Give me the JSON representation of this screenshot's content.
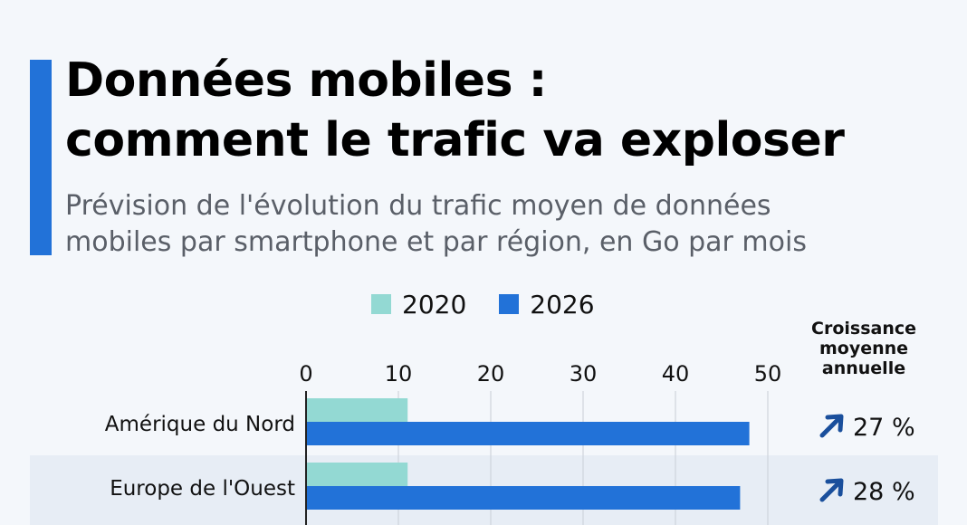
{
  "title": "Données mobiles :\ncomment le trafic va exploser",
  "subtitle": "Prévision de l'évolution du trafic moyen de données\nmobiles par smartphone et par région, en Go par mois",
  "colors": {
    "accent": "#2272d8",
    "series_2020": "#93d9d3",
    "series_2026": "#2272d8",
    "row_band": "#e7edf5",
    "arrow": "#1a4f9c"
  },
  "growth_header": "Croissance\nmoyenne\nannuelle",
  "chart_data": {
    "type": "bar",
    "orientation": "horizontal",
    "categories": [
      "Amérique du Nord",
      "Europe de l'Ouest"
    ],
    "series": [
      {
        "name": "2020",
        "values": [
          11,
          11
        ]
      },
      {
        "name": "2026",
        "values": [
          48,
          47
        ]
      }
    ],
    "x_ticks": [
      "0",
      "10",
      "20",
      "30",
      "40",
      "50"
    ],
    "xlim": [
      0,
      50
    ],
    "legend_position": "top",
    "grid": true,
    "growth": [
      "27 %",
      "28 %"
    ]
  }
}
